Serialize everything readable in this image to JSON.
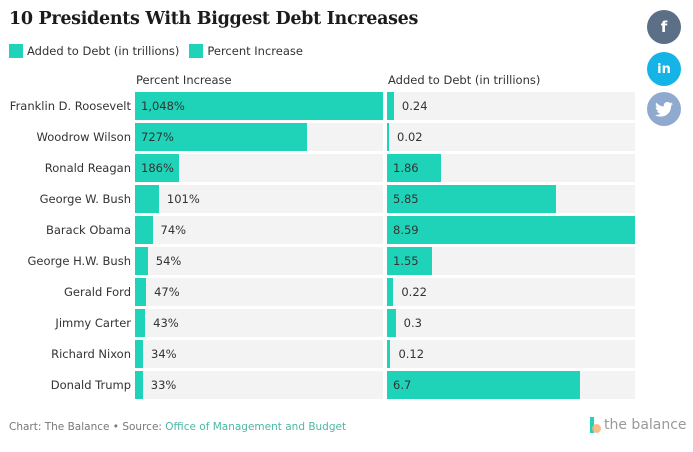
{
  "title": "10 Presidents With Biggest Debt Increases",
  "legend": [
    {
      "label": "Added to Debt (in trillions)",
      "color": "#1fd3b9"
    },
    {
      "label": "Percent Increase",
      "color": "#1fd3b9"
    }
  ],
  "footer": {
    "prefix": "Chart: The Balance • Source: ",
    "source_link": "Office of Management and Budget"
  },
  "brand": "the balance",
  "social": {
    "facebook": {
      "glyph": "f",
      "color": "#5b6f86"
    },
    "linkedin": {
      "glyph": "in",
      "color": "#15b4e6"
    },
    "twitter": {
      "glyph": "🐦",
      "color": "#8fa9cf"
    }
  },
  "chart_data": [
    {
      "type": "bar",
      "orientation": "horizontal",
      "title": "Percent Increase",
      "categories": [
        "Franklin D. Roosevelt",
        "Woodrow Wilson",
        "Ronald Reagan",
        "George W. Bush",
        "Barack Obama",
        "George H.W. Bush",
        "Gerald Ford",
        "Jimmy Carter",
        "Richard Nixon",
        "Donald Trump"
      ],
      "values": [
        1048,
        727,
        186,
        101,
        74,
        54,
        47,
        43,
        34,
        33
      ],
      "labels": [
        "1,048%",
        "727%",
        "186%",
        "101%",
        "74%",
        "54%",
        "47%",
        "43%",
        "34%",
        "33%"
      ],
      "xlim": [
        0,
        1048
      ],
      "color": "#1fd3b9"
    },
    {
      "type": "bar",
      "orientation": "horizontal",
      "title": "Added to Debt (in trillions)",
      "categories": [
        "Franklin D. Roosevelt",
        "Woodrow Wilson",
        "Ronald Reagan",
        "George W. Bush",
        "Barack Obama",
        "George H.W. Bush",
        "Gerald Ford",
        "Jimmy Carter",
        "Richard Nixon",
        "Donald Trump"
      ],
      "values": [
        0.24,
        0.02,
        1.86,
        5.85,
        8.59,
        1.55,
        0.22,
        0.3,
        0.12,
        6.7
      ],
      "labels": [
        "0.24",
        "0.02",
        "1.86",
        "5.85",
        "8.59",
        "1.55",
        "0.22",
        "0.3",
        "0.12",
        "6.7"
      ],
      "xlim": [
        0,
        8.59
      ],
      "color": "#1fd3b9"
    }
  ]
}
